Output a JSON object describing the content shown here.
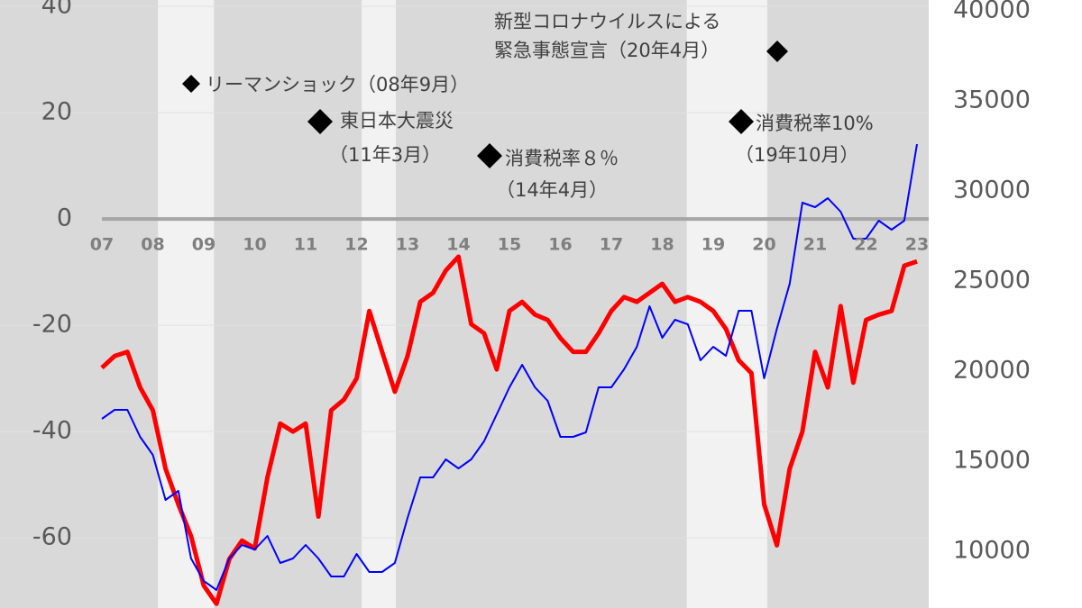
{
  "chart_data": {
    "type": "line",
    "x": [
      7,
      7.25,
      7.5,
      7.75,
      8,
      8.25,
      8.5,
      8.75,
      9,
      9.25,
      9.5,
      9.75,
      10,
      10.25,
      10.5,
      10.75,
      11,
      11.25,
      11.5,
      11.75,
      12,
      12.25,
      12.5,
      12.75,
      13,
      13.25,
      13.5,
      13.75,
      14,
      14.25,
      14.5,
      14.75,
      15,
      15.25,
      15.5,
      15.75,
      16,
      16.25,
      16.5,
      16.75,
      17,
      17.25,
      17.5,
      17.75,
      18,
      18.25,
      18.5,
      18.75,
      19,
      19.25,
      19.5,
      19.75,
      20,
      20.25,
      20.5,
      20.75,
      21,
      21.25,
      21.5,
      21.75,
      22,
      22.25,
      22.5,
      22.75,
      23
    ],
    "series": [
      {
        "color": "#ff0000",
        "values": [
          -28,
          -25.8,
          -25,
          -31.7,
          -36,
          -47,
          -53.7,
          -59.7,
          -69,
          -72.4,
          -64,
          -60.5,
          -62,
          -48.6,
          -38.5,
          -40,
          -38.5,
          -56,
          -36,
          -34,
          -30,
          -17.3,
          -25,
          -32.5,
          -25.8,
          -15.6,
          -13.9,
          -9.7,
          -7.1,
          -19.8,
          -21.5,
          -28.3,
          -17.3,
          -15.6,
          -18,
          -19,
          -22.4,
          -25,
          -25,
          -21.5,
          -17.3,
          -14.7,
          -15.6,
          -13.9,
          -12.2,
          -15.6,
          -14.7,
          -15.6,
          -17.3,
          -20.7,
          -26.6,
          -29,
          -53.7,
          -61.4,
          -47,
          -40,
          -25,
          -31.7,
          -16.4,
          -30.8,
          -19,
          -18,
          -17.3,
          -8.8,
          -8
        ]
      },
      {
        "color": "#0000ff",
        "axis": "y2",
        "values": [
          17350,
          17850,
          17850,
          16350,
          15350,
          12850,
          13350,
          9600,
          8350,
          7850,
          9600,
          10350,
          10100,
          10850,
          9350,
          9600,
          10350,
          9600,
          8600,
          8600,
          9850,
          8850,
          8850,
          9350,
          11850,
          14100,
          14100,
          15100,
          14600,
          15100,
          16100,
          17600,
          19100,
          20350,
          19100,
          18350,
          16350,
          16350,
          16600,
          19100,
          19100,
          20100,
          21350,
          23600,
          21850,
          22850,
          22600,
          20600,
          21350,
          20850,
          23350,
          23350,
          19600,
          22350,
          24850,
          29350,
          29100,
          29600,
          28850,
          27350,
          27350,
          28350,
          27850,
          28350,
          32600
        ]
      }
    ],
    "xlim": [
      5,
      23.23
    ],
    "xticks": [
      {
        "value": 7,
        "label": "07"
      },
      {
        "value": 8,
        "label": "08"
      },
      {
        "value": 9,
        "label": "09"
      },
      10,
      11,
      12,
      13,
      14,
      15,
      16,
      17,
      18,
      19,
      20,
      21,
      22,
      23
    ],
    "ylim": [
      -73.2,
      41.2
    ],
    "yticks": [
      -60,
      -40,
      -20,
      0,
      20,
      40
    ],
    "y2lim": [
      6850,
      40600
    ],
    "y2ticks": [
      10000,
      15000,
      20000,
      25000,
      30000,
      35000,
      40000
    ],
    "shaded_ranges": [
      [
        8.1,
        9.2
      ],
      [
        12.1,
        12.77
      ],
      [
        18.48,
        20.06
      ]
    ],
    "grid": true,
    "annotations": [
      {
        "lines": [
          "新型コロナウイルスによる",
          "緊急事態宣言（20年4月）"
        ]
      },
      {
        "lines": [
          "リーマンショック（08年9月）"
        ]
      },
      {
        "lines": [
          "東日本大震災",
          "（11年3月）"
        ]
      },
      {
        "lines": [
          "消費税率８％",
          "（14年4月）"
        ]
      },
      {
        "lines": [
          "消費税率10%",
          "（19年10月）"
        ]
      }
    ]
  }
}
